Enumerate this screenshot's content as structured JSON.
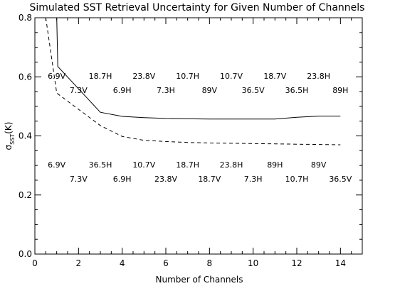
{
  "chart_data": {
    "type": "line",
    "title": "Simulated SST Retrieval Uncertainty for Given Number of Channels",
    "xlabel": "Number of Channels",
    "ylabel_base": "σ",
    "ylabel_sub": "SST",
    "ylabel_unit": "(K)",
    "xlim": [
      0,
      15
    ],
    "ylim": [
      0.0,
      0.8
    ],
    "xticks": [
      0,
      2,
      4,
      6,
      8,
      10,
      12,
      14
    ],
    "xtick_labels": [
      "0",
      "2",
      "4",
      "6",
      "8",
      "10",
      "12",
      "14"
    ],
    "yticks": [
      0.0,
      0.2,
      0.4,
      0.6,
      0.8
    ],
    "ytick_labels": [
      "0.0",
      "0.2",
      "0.4",
      "0.6",
      "0.8"
    ],
    "grid": false,
    "series": [
      {
        "style": "solid",
        "x": [
          1,
          1.05,
          3,
          4,
          5,
          6,
          7,
          8,
          9,
          10,
          11,
          12,
          13,
          14
        ],
        "y": [
          0.8,
          0.635,
          0.48,
          0.466,
          0.462,
          0.459,
          0.458,
          0.457,
          0.457,
          0.457,
          0.457,
          0.463,
          0.467,
          0.467
        ]
      },
      {
        "style": "dashed",
        "x": [
          0.5,
          1,
          2,
          3,
          4,
          5,
          6,
          7,
          8,
          9,
          10,
          11,
          12,
          13,
          14
        ],
        "y": [
          0.8,
          0.545,
          0.49,
          0.435,
          0.398,
          0.385,
          0.381,
          0.378,
          0.376,
          0.375,
          0.374,
          0.373,
          0.372,
          0.371,
          0.37
        ]
      }
    ],
    "annotations": [
      {
        "text": "6.9V",
        "x": 1.0,
        "y": 0.603
      },
      {
        "text": "18.7H",
        "x": 3.0,
        "y": 0.603
      },
      {
        "text": "23.8V",
        "x": 5.0,
        "y": 0.603
      },
      {
        "text": "10.7H",
        "x": 7.0,
        "y": 0.603
      },
      {
        "text": "10.7V",
        "x": 9.0,
        "y": 0.603
      },
      {
        "text": "18.7V",
        "x": 11.0,
        "y": 0.603
      },
      {
        "text": "23.8H",
        "x": 13.0,
        "y": 0.603
      },
      {
        "text": "7.3V",
        "x": 2.0,
        "y": 0.555
      },
      {
        "text": "6.9H",
        "x": 4.0,
        "y": 0.555
      },
      {
        "text": "7.3H",
        "x": 6.0,
        "y": 0.555
      },
      {
        "text": "89V",
        "x": 8.0,
        "y": 0.555
      },
      {
        "text": "36.5V",
        "x": 10.0,
        "y": 0.555
      },
      {
        "text": "36.5H",
        "x": 12.0,
        "y": 0.555
      },
      {
        "text": "89H",
        "x": 14.0,
        "y": 0.555
      },
      {
        "text": "6.9V",
        "x": 1.0,
        "y": 0.303
      },
      {
        "text": "36.5H",
        "x": 3.0,
        "y": 0.303
      },
      {
        "text": "10.7V",
        "x": 5.0,
        "y": 0.303
      },
      {
        "text": "18.7H",
        "x": 7.0,
        "y": 0.303
      },
      {
        "text": "23.8H",
        "x": 9.0,
        "y": 0.303
      },
      {
        "text": "89H",
        "x": 11.0,
        "y": 0.303
      },
      {
        "text": "89V",
        "x": 13.0,
        "y": 0.303
      },
      {
        "text": "7.3V",
        "x": 2.0,
        "y": 0.255
      },
      {
        "text": "6.9H",
        "x": 4.0,
        "y": 0.255
      },
      {
        "text": "23.8V",
        "x": 6.0,
        "y": 0.255
      },
      {
        "text": "18.7V",
        "x": 8.0,
        "y": 0.255
      },
      {
        "text": "7.3H",
        "x": 10.0,
        "y": 0.255
      },
      {
        "text": "10.7H",
        "x": 12.0,
        "y": 0.255
      },
      {
        "text": "36.5V",
        "x": 14.0,
        "y": 0.255
      }
    ]
  }
}
